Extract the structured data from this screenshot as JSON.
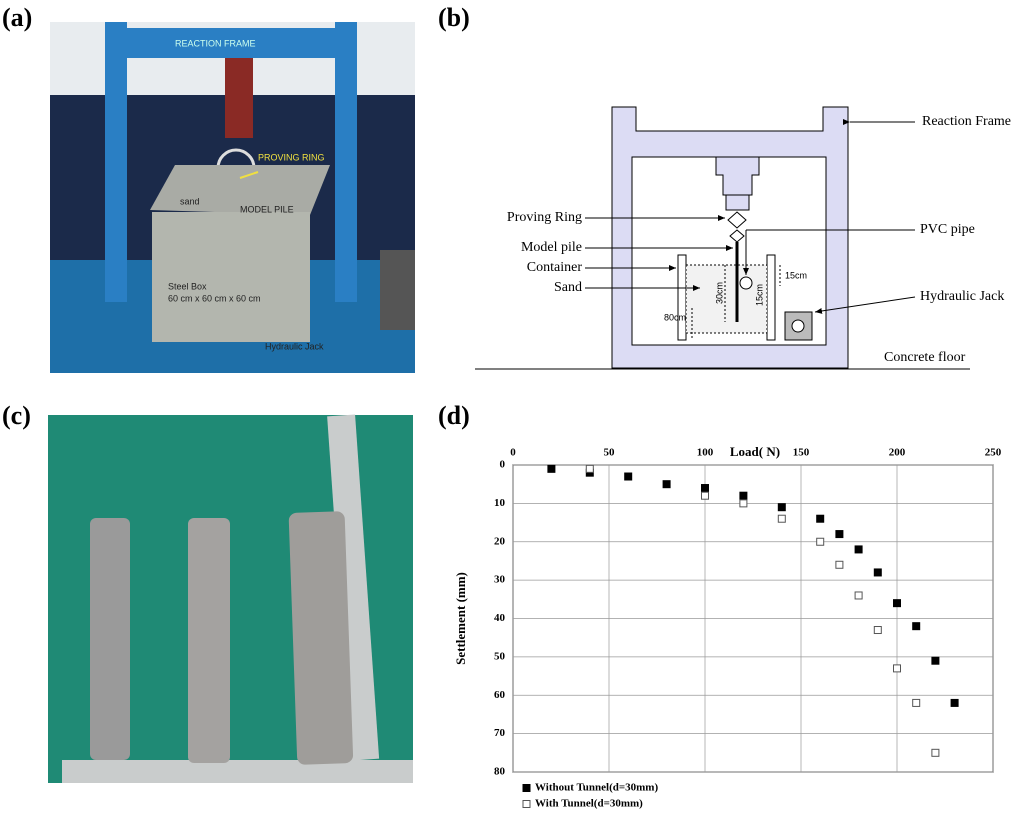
{
  "panels": {
    "a": "(a)",
    "b": "(b)",
    "c": "(c)",
    "d": "(d)"
  },
  "photo_a": {
    "reaction_frame": "REACTION FRAME",
    "proving_ring": "PROVING RING",
    "sand": "sand",
    "model_pile": "MODEL PILE",
    "steel_box": "Steel Box",
    "box_size": "60 cm x 60 cm x 60 cm",
    "hydraulic_jack": "Hydraulic Jack"
  },
  "diagram_b": {
    "reaction_frame": "Reaction Frame",
    "proving_ring": "Proving Ring",
    "pvc_pipe": "PVC pipe",
    "model_pile": "Model pile",
    "container": "Container",
    "sand": "Sand",
    "hydraulic_jack": "Hydraulic Jack",
    "concrete_floor": "Concrete floor",
    "dim_top": "15cm",
    "dim_pile": "30cm",
    "dim_pipe": "15cm",
    "dim_depth": "80cm"
  },
  "chart_data": {
    "type": "scatter",
    "x_label": "Load( N)",
    "y_label": "Settlement (mm)",
    "xlim": [
      0,
      250
    ],
    "xticks": [
      0,
      50,
      100,
      150,
      200,
      250
    ],
    "x_axis_position": "top",
    "ylim": [
      0,
      80
    ],
    "yticks": [
      0,
      10,
      20,
      30,
      40,
      50,
      60,
      70,
      80
    ],
    "y_axis_inverted": true,
    "grid": true,
    "legend": "bottom-left",
    "series": [
      {
        "name": "Without Tunnel(d=30mm)",
        "color": "#000000",
        "marker": "filled-square",
        "x": [
          20,
          40,
          60,
          80,
          100,
          120,
          140,
          160,
          170,
          180,
          190,
          200,
          210,
          220,
          230
        ],
        "values": [
          1,
          2,
          3,
          5,
          6,
          8,
          11,
          14,
          18,
          22,
          28,
          36,
          42,
          51,
          62
        ]
      },
      {
        "name": "With Tunnel(d=30mm)",
        "color": "#555555",
        "marker": "open-square",
        "x": [
          40,
          100,
          120,
          140,
          160,
          170,
          180,
          190,
          200,
          210,
          220
        ],
        "values": [
          1,
          8,
          10,
          14,
          20,
          26,
          34,
          43,
          53,
          62,
          75
        ]
      }
    ]
  }
}
